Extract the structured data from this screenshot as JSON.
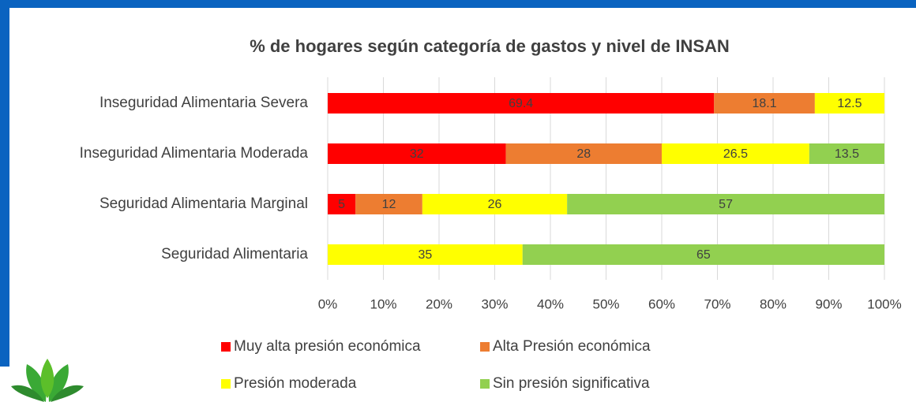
{
  "chart_data": {
    "type": "stacked-bar-horizontal",
    "title": "% de hogares según categoría de gastos y nivel de INSAN",
    "categories": [
      "Inseguridad Alimentaria Severa",
      "Inseguridad Alimentaria Moderada",
      "Seguridad Alimentaria Marginal",
      "Seguridad Alimentaria"
    ],
    "series": [
      {
        "name": "Muy alta presión económica",
        "color": "#ff0000",
        "values": [
          69.4,
          32,
          5,
          0
        ]
      },
      {
        "name": "Alta Presión económica",
        "color": "#ed7d31",
        "values": [
          18.1,
          28,
          12,
          0
        ]
      },
      {
        "name": "Presión moderada",
        "color": "#ffff00",
        "values": [
          12.5,
          26.5,
          26,
          35
        ]
      },
      {
        "name": "Sin presión significativa",
        "color": "#92d050",
        "values": [
          0,
          13.5,
          57,
          65
        ]
      }
    ],
    "xlim": [
      0,
      100
    ],
    "xticks": [
      {
        "value": 0,
        "label": "0%"
      },
      {
        "value": 10,
        "label": "10%"
      },
      {
        "value": 20,
        "label": "20%"
      },
      {
        "value": 30,
        "label": "30%"
      },
      {
        "value": 40,
        "label": "40%"
      },
      {
        "value": 50,
        "label": "50%"
      },
      {
        "value": 60,
        "label": "60%"
      },
      {
        "value": 70,
        "label": "70%"
      },
      {
        "value": 80,
        "label": "80%"
      },
      {
        "value": 90,
        "label": "90%"
      },
      {
        "value": 100,
        "label": "100%"
      }
    ],
    "grid": true,
    "legend": "bottom"
  }
}
